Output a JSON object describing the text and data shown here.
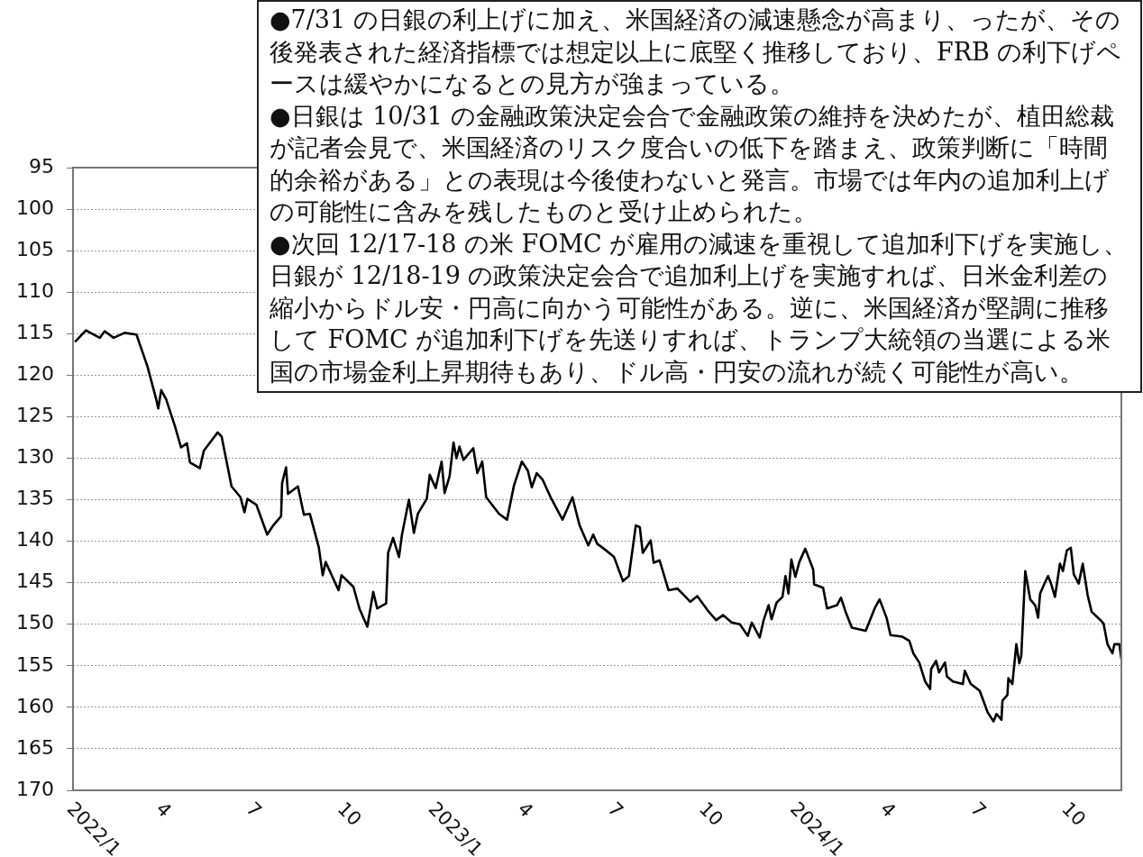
{
  "chart_data": {
    "type": "line",
    "color": "#000000",
    "grid": "y",
    "marker": "none",
    "line_style": "solid",
    "xlim": [
      "2022-01-01",
      "2024-11-24"
    ],
    "xticks": [
      {
        "value": "2022-01-01",
        "label": "2022/1"
      },
      {
        "value": "2022-04-01",
        "label": "4"
      },
      {
        "value": "2022-07-01",
        "label": "7"
      },
      {
        "value": "2022-10-01",
        "label": "10"
      },
      {
        "value": "2023-01-01",
        "label": "2023/1"
      },
      {
        "value": "2023-04-01",
        "label": "4"
      },
      {
        "value": "2023-07-01",
        "label": "7"
      },
      {
        "value": "2023-10-01",
        "label": "10"
      },
      {
        "value": "2024-01-01",
        "label": "2024/1"
      },
      {
        "value": "2024-04-01",
        "label": "4"
      },
      {
        "value": "2024-07-01",
        "label": "7"
      },
      {
        "value": "2024-10-01",
        "label": "10"
      }
    ],
    "ylim": [
      170,
      95
    ],
    "yticks": [
      95,
      100,
      105,
      110,
      115,
      120,
      125,
      130,
      135,
      140,
      145,
      150,
      155,
      160,
      165,
      170
    ],
    "x": [
      "2022-01-03",
      "2022-01-14",
      "2022-01-28",
      "2022-02-02",
      "2022-02-11",
      "2022-02-22",
      "2022-03-06",
      "2022-03-17",
      "2022-03-26",
      "2022-03-28",
      "2022-03-31",
      "2022-04-05",
      "2022-04-14",
      "2022-04-20",
      "2022-04-26",
      "2022-04-29",
      "2022-05-09",
      "2022-05-13",
      "2022-05-20",
      "2022-05-27",
      "2022-05-31",
      "2022-06-10",
      "2022-06-19",
      "2022-06-23",
      "2022-06-26",
      "2022-07-05",
      "2022-07-16",
      "2022-07-22",
      "2022-07-30",
      "2022-07-31",
      "2022-08-04",
      "2022-08-06",
      "2022-08-16",
      "2022-08-22",
      "2022-08-28",
      "2022-09-06",
      "2022-09-10",
      "2022-09-13",
      "2022-09-26",
      "2022-09-29",
      "2022-10-11",
      "2022-10-17",
      "2022-10-25",
      "2022-10-31",
      "2022-11-04",
      "2022-11-13",
      "2022-11-15",
      "2022-11-20",
      "2022-11-26",
      "2022-11-29",
      "2022-12-06",
      "2022-12-11",
      "2022-12-15",
      "2022-12-24",
      "2022-12-27",
      "2023-01-02",
      "2023-01-08",
      "2023-01-11",
      "2023-01-16",
      "2023-01-20",
      "2023-01-23",
      "2023-01-26",
      "2023-01-30",
      "2023-02-09",
      "2023-02-13",
      "2023-02-18",
      "2023-02-22",
      "2023-03-07",
      "2023-03-15",
      "2023-03-22",
      "2023-03-30",
      "2023-04-05",
      "2023-04-09",
      "2023-04-14",
      "2023-04-20",
      "2023-04-28",
      "2023-05-10",
      "2023-05-20",
      "2023-05-27",
      "2023-06-05",
      "2023-06-10",
      "2023-06-14",
      "2023-06-24",
      "2023-07-01",
      "2023-07-10",
      "2023-07-16",
      "2023-07-23",
      "2023-07-27",
      "2023-07-30",
      "2023-08-07",
      "2023-08-10",
      "2023-08-16",
      "2023-08-25",
      "2023-09-03",
      "2023-09-16",
      "2023-09-23",
      "2023-10-04",
      "2023-10-12",
      "2023-10-19",
      "2023-10-28",
      "2023-11-05",
      "2023-11-13",
      "2023-11-17",
      "2023-11-25",
      "2023-11-29",
      "2023-12-04",
      "2023-12-07",
      "2023-12-12",
      "2023-12-18",
      "2023-12-21",
      "2023-12-24",
      "2023-12-27",
      "2023-12-31",
      "2024-01-04",
      "2024-01-10",
      "2024-01-18",
      "2024-01-19",
      "2024-01-28",
      "2024-02-01",
      "2024-02-11",
      "2024-02-15",
      "2024-02-20",
      "2024-02-26",
      "2024-03-11",
      "2024-03-14",
      "2024-03-20",
      "2024-03-25",
      "2024-04-01",
      "2024-04-05",
      "2024-04-17",
      "2024-04-24",
      "2024-04-28",
      "2024-05-04",
      "2024-05-10",
      "2024-05-15",
      "2024-05-16",
      "2024-05-21",
      "2024-05-24",
      "2024-05-30",
      "2024-06-01",
      "2024-06-07",
      "2024-06-17",
      "2024-06-19",
      "2024-06-25",
      "2024-07-04",
      "2024-07-09",
      "2024-07-12",
      "2024-07-18",
      "2024-07-21",
      "2024-07-26",
      "2024-07-27",
      "2024-08-01",
      "2024-08-02",
      "2024-08-06",
      "2024-08-10",
      "2024-08-13",
      "2024-08-15",
      "2024-08-19",
      "2024-08-24",
      "2024-08-29",
      "2024-09-01",
      "2024-09-03",
      "2024-09-07",
      "2024-09-11",
      "2024-09-14",
      "2024-09-18",
      "2024-09-23",
      "2024-09-26",
      "2024-09-30",
      "2024-10-04",
      "2024-10-07",
      "2024-10-12",
      "2024-10-16",
      "2024-10-21",
      "2024-10-25",
      "2024-11-02",
      "2024-11-06",
      "2024-11-10",
      "2024-11-15",
      "2024-11-17",
      "2024-11-22",
      "2024-11-24"
    ],
    "values": [
      116.0,
      114.6,
      115.5,
      114.7,
      115.5,
      114.9,
      115.1,
      118.9,
      122.9,
      124.0,
      121.8,
      122.9,
      126.2,
      128.7,
      128.2,
      130.5,
      131.2,
      129.1,
      128.0,
      126.9,
      127.4,
      133.4,
      134.7,
      136.5,
      134.9,
      135.6,
      139.2,
      138.1,
      137.0,
      133.0,
      131.1,
      134.3,
      133.4,
      136.8,
      136.7,
      140.7,
      144.1,
      142.5,
      145.9,
      144.1,
      145.5,
      148.1,
      150.3,
      146.1,
      148.1,
      147.5,
      141.4,
      139.6,
      141.9,
      139.2,
      135.0,
      139.0,
      136.7,
      134.9,
      132.0,
      133.6,
      130.4,
      134.2,
      132.2,
      128.1,
      130.0,
      128.6,
      130.2,
      128.8,
      131.8,
      130.4,
      134.7,
      136.7,
      137.4,
      133.3,
      130.4,
      131.5,
      133.5,
      131.8,
      132.6,
      134.7,
      137.4,
      134.7,
      138.0,
      140.5,
      139.2,
      140.3,
      141.2,
      141.9,
      144.8,
      144.2,
      138.1,
      138.3,
      141.4,
      139.9,
      142.6,
      142.3,
      145.9,
      145.7,
      147.3,
      146.6,
      148.4,
      149.5,
      148.9,
      149.8,
      150.0,
      151.4,
      149.8,
      151.6,
      149.5,
      147.7,
      149.4,
      147.4,
      146.7,
      144.2,
      146.3,
      142.2,
      144.3,
      142.5,
      140.9,
      143.4,
      145.2,
      145.6,
      148.1,
      147.7,
      146.8,
      148.6,
      150.4,
      150.8,
      149.9,
      148.1,
      147.0,
      149.2,
      151.3,
      151.5,
      152.0,
      153.5,
      154.6,
      156.9,
      157.8,
      155.4,
      154.4,
      155.8,
      154.6,
      156.3,
      156.9,
      157.2,
      155.6,
      157.2,
      158.0,
      159.6,
      160.6,
      161.7,
      160.8,
      161.5,
      159.2,
      158.5,
      156.5,
      157.2,
      152.4,
      154.7,
      153.8,
      143.6,
      147.0,
      147.7,
      149.2,
      146.3,
      145.2,
      144.2,
      145.1,
      146.7,
      142.7,
      143.6,
      141.1,
      140.8,
      144.0,
      145.1,
      142.7,
      146.5,
      148.5,
      149.4,
      149.9,
      152.4,
      153.5,
      152.4,
      152.4,
      154.2
    ],
    "annotations": [
      "●7/31 の日銀の利上げに加え、米国経済の減速懸念が高まり、ったが、その後発表された経済指標では想定以上に底堅く推移しており、FRB の利下げペースは緩やかになるとの見方が強まっている。",
      "●日銀は 10/31 の金融政策決定会合で金融政策の維持を決めたが、植田総裁が記者会見で、米国経済のリスク度合いの低下を踏まえ、政策判断に「時間的余裕がある」との表現は今後使わないと発言。市場では年内の追加利上げの可能性に含みを残したものと受け止められた。",
      "●次回 12/17-18 の米 FOMC が雇用の減速を重視して追加利下げを実施し、日銀が 12/18-19 の政策決定会合で追加利上げを実施すれば、日米金利差の縮小からドル安・円高に向かう可能性がある。逆に、米国経済が堅調に推移して FOMC が追加利下げを先送りすれば、トランプ大統領の当選による米国の市場金利上昇期待もあり、ドル高・円安の流れが続く可能性が高い。"
    ]
  }
}
